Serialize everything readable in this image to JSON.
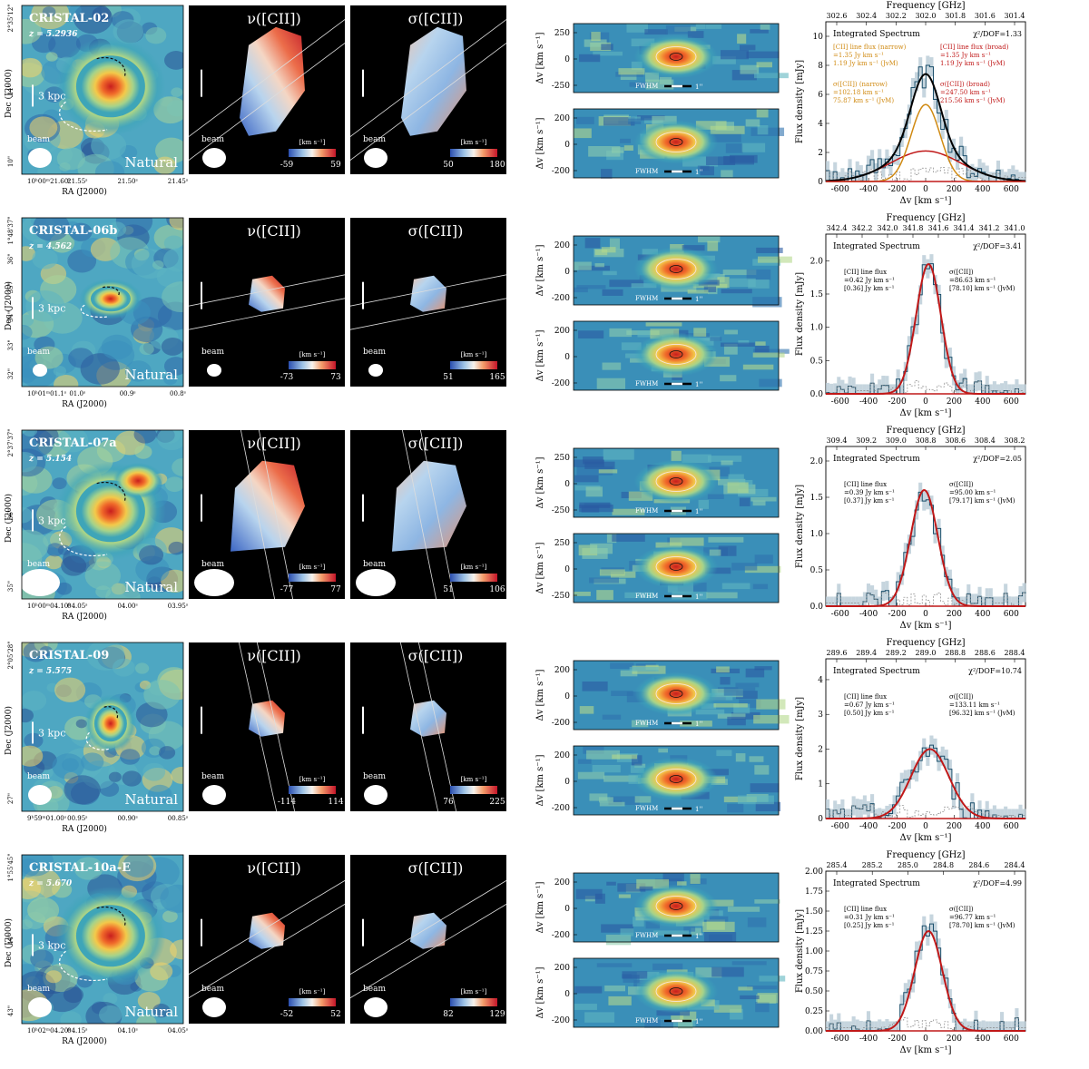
{
  "colors": {
    "map_low": "#1d3f8f",
    "map_mid": "#3a9fb8",
    "map_high": "#d7291f",
    "narrow": "#d08a12",
    "broad": "#c01818",
    "total": "#000000",
    "data": "#1b4f6b",
    "err": "#b8cad6"
  },
  "labels": {
    "dec": "Dec (J2000)",
    "ra": "RA (J2000)",
    "beam": "beam",
    "natural": "Natural",
    "vel_title": "ν([CII])",
    "sig_title": "σ([CII])",
    "cbar_unit": "[km s⁻¹]",
    "dv_axis": "Δv [km s⁻¹]",
    "fwhm": "FWHM",
    "arcsec": "1''",
    "freq_title": "Frequency [GHz]",
    "flux_axis": "Flux density [mJy]",
    "spec_axis": "Δv [km s⁻¹]",
    "integrated": "Integrated Spectrum",
    "kpc": "3 kpc"
  },
  "rows": [
    {
      "name": "CRISTAL-02",
      "z": "z = 5.2936",
      "dec_ticks": [
        "2°35'12\"",
        "11\"",
        "10\""
      ],
      "ra_ticks": [
        "10ʰ00ᵐ21.60ˢ",
        "21.55ˢ",
        "21.50ˢ",
        "21.45ˢ"
      ],
      "vel_range": [
        "-59",
        "59"
      ],
      "sig_range": [
        "50",
        "180"
      ],
      "pv_yticks_a": [
        "250",
        "0",
        "-250"
      ],
      "pv_yticks_b": [
        "200",
        "0",
        "-200"
      ],
      "freq_ticks": [
        "302.6",
        "302.4",
        "302.2",
        "302.0",
        "301.8",
        "301.6",
        "301.4"
      ],
      "chi": "χ²/DOF=1.33",
      "ymax": 11,
      "yticks": [
        "0",
        "2",
        "4",
        "6",
        "8",
        "10"
      ],
      "two_comp": true,
      "narrow": [
        "[CII] line flux (narrow)",
        "=1.35 Jy km s⁻¹",
        "1.19 Jy km s⁻¹ (JvM)",
        "σ([CII]) (narrow)",
        "=102.18 km s⁻¹",
        "75.87 km s⁻¹ (JvM)"
      ],
      "broad": [
        "[CII] line flux (broad)",
        "=1.35 Jy km s⁻¹",
        "1.19 Jy km s⁻¹ (JvM)",
        "σ([CII]) (broad)",
        "=247.50 km s⁻¹",
        "215.56 km s⁻¹ (JvM)"
      ],
      "spec": {
        "narrow_amp": 5.3,
        "narrow_sig": 102,
        "broad_amp": 2.1,
        "broad_sig": 247,
        "center": 0
      }
    },
    {
      "name": "CRISTAL-06b",
      "z": "z = 4.562",
      "dec_ticks": [
        "1°48'37\"",
        "36\"",
        "35\"",
        "34\"",
        "33\"",
        "32\""
      ],
      "ra_ticks": [
        "10ʰ01ᵐ01.1ˢ",
        "01.0ˢ",
        "00.9ˢ",
        "00.8ˢ"
      ],
      "vel_range": [
        "-73",
        "73"
      ],
      "sig_range": [
        "51",
        "165"
      ],
      "pv_yticks_a": [
        "200",
        "0",
        "-200"
      ],
      "pv_yticks_b": [
        "200",
        "0",
        "-200"
      ],
      "freq_ticks": [
        "342.4",
        "342.2",
        "342.0",
        "341.8",
        "341.6",
        "341.4",
        "341.2",
        "341.0"
      ],
      "chi": "χ²/DOF=3.41",
      "ymax": 2.4,
      "yticks": [
        "0.0",
        "0.5",
        "1.0",
        "1.5",
        "2.0"
      ],
      "two_comp": false,
      "flux": [
        "[CII] line flux",
        "=0.42 Jy km s⁻¹",
        "[0.36] Jy km s⁻¹"
      ],
      "sigma": [
        "σ([CII])",
        "=86.63 km s⁻¹",
        "[78.10] km s⁻¹ (JvM)"
      ],
      "spec": {
        "amp": 1.95,
        "sig": 87,
        "center": 20
      }
    },
    {
      "name": "CRISTAL-07a",
      "z": "z = 5.154",
      "dec_ticks": [
        "2°37'37\"",
        "36\"",
        "35\""
      ],
      "ra_ticks": [
        "10ʰ00ᵐ04.10ˢ",
        "04.05ˢ",
        "04.00ˢ",
        "03.95ˢ"
      ],
      "vel_range": [
        "-77",
        "77"
      ],
      "sig_range": [
        "51",
        "106"
      ],
      "pv_yticks_a": [
        "250",
        "0",
        "-250"
      ],
      "pv_yticks_b": [
        "250",
        "0",
        "-250"
      ],
      "freq_ticks": [
        "309.4",
        "309.2",
        "309.0",
        "308.8",
        "308.6",
        "308.4",
        "308.2"
      ],
      "chi": "χ²/DOF=2.05",
      "ymax": 2.2,
      "yticks": [
        "0.0",
        "0.5",
        "1.0",
        "1.5",
        "2.0"
      ],
      "two_comp": false,
      "flux": [
        "[CII] line flux",
        "=0.39 Jy km s⁻¹",
        "[0.37] Jy km s⁻¹"
      ],
      "sigma": [
        "σ([CII])",
        "=95.00 km s⁻¹",
        "[79.17] km s⁻¹ (JvM)"
      ],
      "spec": {
        "amp": 1.6,
        "sig": 95,
        "center": -10
      }
    },
    {
      "name": "CRISTAL-09",
      "z": "z = 5.575",
      "dec_ticks": [
        "2°05'28\"",
        "27\""
      ],
      "ra_ticks": [
        "9ʰ59ᵐ01.00ˢ",
        "00.95ˢ",
        "00.90ˢ",
        "00.85ˢ"
      ],
      "vel_range": [
        "-114",
        "114"
      ],
      "sig_range": [
        "76",
        "225"
      ],
      "pv_yticks_a": [
        "200",
        "0",
        "-200"
      ],
      "pv_yticks_b": [
        "200",
        "0",
        "-200"
      ],
      "freq_ticks": [
        "289.6",
        "289.4",
        "289.2",
        "289.0",
        "288.8",
        "288.6",
        "288.4"
      ],
      "chi": "χ²/DOF=10.74",
      "ymax": 4.6,
      "yticks": [
        "0",
        "1",
        "2",
        "3",
        "4"
      ],
      "two_comp": false,
      "flux": [
        "[CII] line flux",
        "=0.67 Jy km s⁻¹",
        "[0.50] Jy km s⁻¹"
      ],
      "sigma": [
        "σ([CII])",
        "=133.11 km s⁻¹",
        "[96.32] km s⁻¹ (JvM)"
      ],
      "spec": {
        "amp": 2.0,
        "sig": 133,
        "center": 30
      }
    },
    {
      "name": "CRISTAL-10a-E",
      "z": "z = 5.670",
      "dec_ticks": [
        "1°55'45\"",
        "44\"",
        "43\""
      ],
      "ra_ticks": [
        "10ʰ02ᵐ04.20ˢ",
        "04.15ˢ",
        "04.10ˢ",
        "04.05ˢ"
      ],
      "vel_range": [
        "-52",
        "52"
      ],
      "sig_range": [
        "82",
        "129"
      ],
      "pv_yticks_a": [
        "200",
        "0",
        "-200"
      ],
      "pv_yticks_b": [
        "200",
        "0",
        "-200"
      ],
      "freq_ticks": [
        "285.4",
        "285.2",
        "285.0",
        "284.8",
        "284.6",
        "284.4"
      ],
      "chi": "χ²/DOF=4.99",
      "ymax": 2.0,
      "yticks": [
        "0.00",
        "0.25",
        "0.50",
        "0.75",
        "1.00",
        "1.25",
        "1.50",
        "1.75",
        "2.00"
      ],
      "two_comp": false,
      "flux": [
        "[CII] line flux",
        "=0.31 Jy km s⁻¹",
        "[0.25] Jy km s⁻¹"
      ],
      "sigma": [
        "σ([CII])",
        "=96.77 km s⁻¹",
        "[78.70] km s⁻¹ (JvM)"
      ],
      "spec": {
        "amp": 1.25,
        "sig": 97,
        "center": 20
      }
    }
  ],
  "spec_xticks": [
    "-600",
    "-400",
    "-200",
    "0",
    "200",
    "400",
    "600"
  ],
  "spec_xlim": [
    -700,
    700
  ]
}
